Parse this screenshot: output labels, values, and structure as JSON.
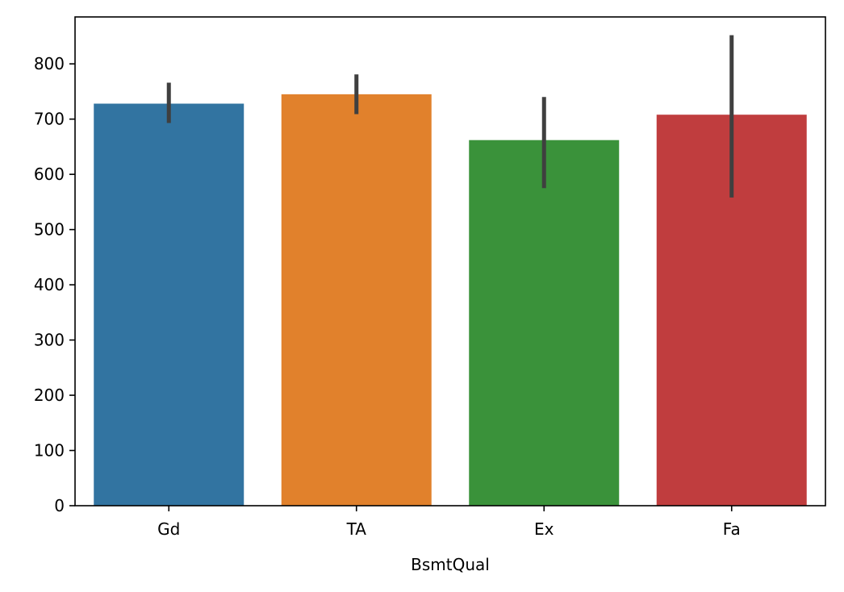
{
  "chart_data": {
    "type": "bar",
    "title": "",
    "xlabel": "BsmtQual",
    "ylabel": "",
    "categories": [
      "Gd",
      "TA",
      "Ex",
      "Fa"
    ],
    "values": [
      728,
      745,
      662,
      708
    ],
    "error_bars": [
      {
        "low": 693,
        "high": 766
      },
      {
        "low": 709,
        "high": 781
      },
      {
        "low": 575,
        "high": 740
      },
      {
        "low": 558,
        "high": 852
      }
    ],
    "colors": [
      "#3274a1",
      "#e1812c",
      "#3a923a",
      "#c03d3e"
    ],
    "error_bar_color": "#3f3f3f",
    "ylim": [
      0,
      885
    ],
    "yticks": [
      0,
      100,
      200,
      300,
      400,
      500,
      600,
      700,
      800
    ],
    "ytick_labels": [
      "0",
      "100",
      "200",
      "300",
      "400",
      "500",
      "600",
      "700",
      "800"
    ],
    "grid": false,
    "legend": "none"
  }
}
